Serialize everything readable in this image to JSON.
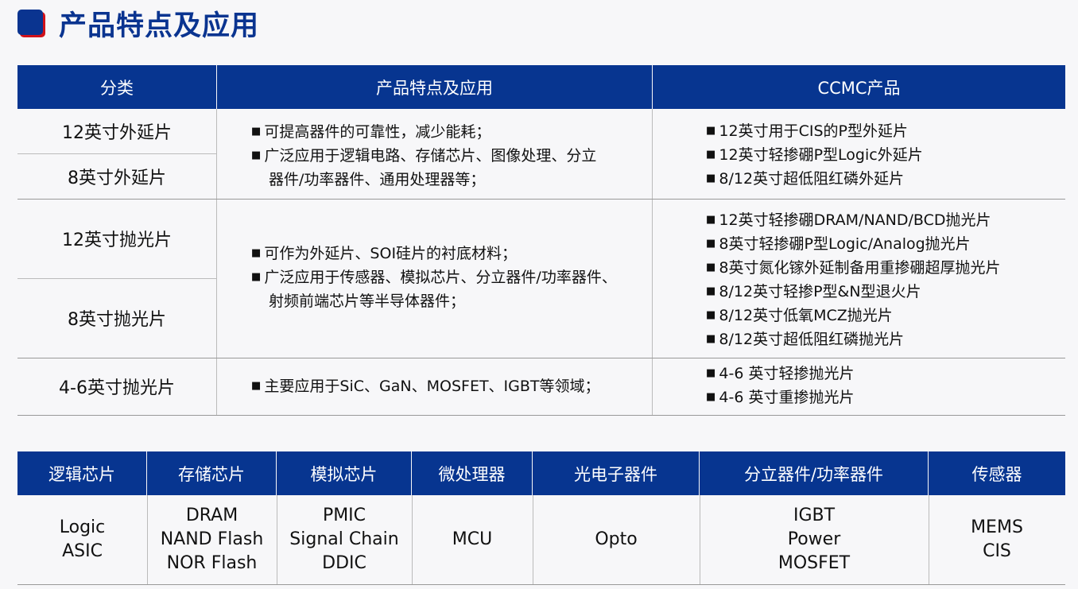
{
  "title": "产品特点及应用",
  "table1": {
    "headers": [
      "分类",
      "产品特点及应用",
      "CCMC产品"
    ],
    "categories": [
      "12英寸外延片",
      "8英寸外延片",
      "12英寸抛光片",
      "8英寸抛光片",
      "4-6英寸抛光片"
    ],
    "features": [
      [
        "可提高器件的可靠性，减少能耗；",
        "广泛应用于逻辑电路、存储芯片、图像处理、分立器件/功率器件、通用处理器等；"
      ],
      [
        "可作为外延片、SOI硅片的衬底材料；",
        "广泛应用于传感器、模拟芯片、分立器件/功率器件、射频前端芯片等半导体器件；"
      ],
      [
        "主要应用于SiC、GaN、MOSFET、IGBT等领域；"
      ]
    ],
    "products": [
      [
        "12英寸用于CIS的P型外延片",
        "12英寸轻掺硼P型Logic外延片",
        "8/12英寸超低阻红磷外延片"
      ],
      [
        "12英寸轻掺硼DRAM/NAND/BCD抛光片",
        "8英寸轻掺硼P型Logic/Analog抛光片",
        "8英寸氮化镓外延制备用重掺硼超厚抛光片",
        "8/12英寸轻掺P型&N型退火片",
        "8/12英寸低氧MCZ抛光片",
        "8/12英寸超低阻红磷抛光片"
      ],
      [
        "4-6 英寸轻掺抛光片",
        "4-6 英寸重掺抛光片"
      ]
    ]
  },
  "table2": {
    "headers": [
      "逻辑芯片",
      "存储芯片",
      "模拟芯片",
      "微处理器",
      "光电子器件",
      "分立器件/功率器件",
      "传感器"
    ],
    "cells": [
      [
        "Logic",
        "ASIC"
      ],
      [
        "DRAM",
        "NAND Flash",
        "NOR Flash"
      ],
      [
        "PMIC",
        "Signal Chain",
        "DDIC"
      ],
      [
        "MCU"
      ],
      [
        "Opto"
      ],
      [
        "IGBT",
        "Power",
        "MOSFET"
      ],
      [
        "MEMS",
        "CIS"
      ]
    ]
  },
  "colors": {
    "header": "#073590",
    "accent": "#d0121b"
  }
}
